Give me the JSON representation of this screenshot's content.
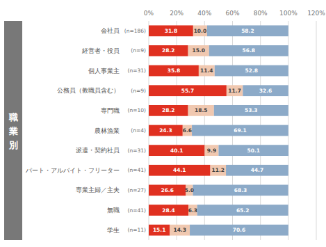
{
  "chart_data": {
    "type": "bar",
    "orientation": "horizontal",
    "stacked": true,
    "data_labels": true,
    "grid": true,
    "ylabel": "職業別",
    "categories": [
      "会社員",
      "経営者・役員",
      "個人事業主",
      "公務員（教職員含む）",
      "専門職",
      "農林漁業",
      "派遣・契約社員",
      "パート・アルバイト・フリーター",
      "専業主婦／主夫",
      "無職",
      "学生"
    ],
    "annotations": [
      "(n=186)",
      "(n=9)",
      "(n=31)",
      "(n=9)",
      "(n=10)",
      "(n=4)",
      "(n=31)",
      "(n=41)",
      "(n=27)",
      "(n=41)",
      "(n=11)"
    ],
    "series": [
      {
        "color": "#E03020",
        "values": [
          31.8,
          28.2,
          35.8,
          55.7,
          28.2,
          24.3,
          40.1,
          44.1,
          26.6,
          28.4,
          15.1
        ],
        "value_labels": [
          "31.8",
          "28.2",
          "35.8",
          "55.7",
          "28.2",
          "24.3",
          "40.1",
          "44.1",
          "26.6",
          "28.4",
          "15.1"
        ]
      },
      {
        "color": "#F0C8B0",
        "values": [
          10.0,
          15.0,
          11.4,
          11.7,
          18.5,
          6.6,
          9.9,
          11.2,
          5.0,
          6.3,
          14.3
        ],
        "value_labels": [
          "10.0",
          "15.0",
          "11.4",
          "11.7",
          "18.5",
          "6.6",
          "9.9",
          "11.2",
          "5.0",
          "6.3",
          "14.3"
        ]
      },
      {
        "color": "#8CAAC8",
        "values": [
          58.2,
          56.8,
          52.8,
          32.6,
          53.3,
          69.1,
          50.1,
          44.7,
          68.3,
          65.2,
          70.6
        ],
        "value_labels": [
          "58.2",
          "56.8",
          "52.8",
          "32.6",
          "53.3",
          "69.1",
          "50.1",
          "44.7",
          "68.3",
          "65.2",
          "70.6"
        ]
      }
    ],
    "xlim": [
      0,
      120
    ],
    "xticks": [
      {
        "value": 0,
        "label": "0%"
      },
      {
        "value": 20,
        "label": "20%"
      },
      {
        "value": 40,
        "label": "40%"
      },
      {
        "value": 60,
        "label": "60%"
      },
      {
        "value": 80,
        "label": "80%"
      },
      {
        "value": 100,
        "label": "100%"
      },
      {
        "value": 120,
        "label": "120%"
      }
    ]
  }
}
